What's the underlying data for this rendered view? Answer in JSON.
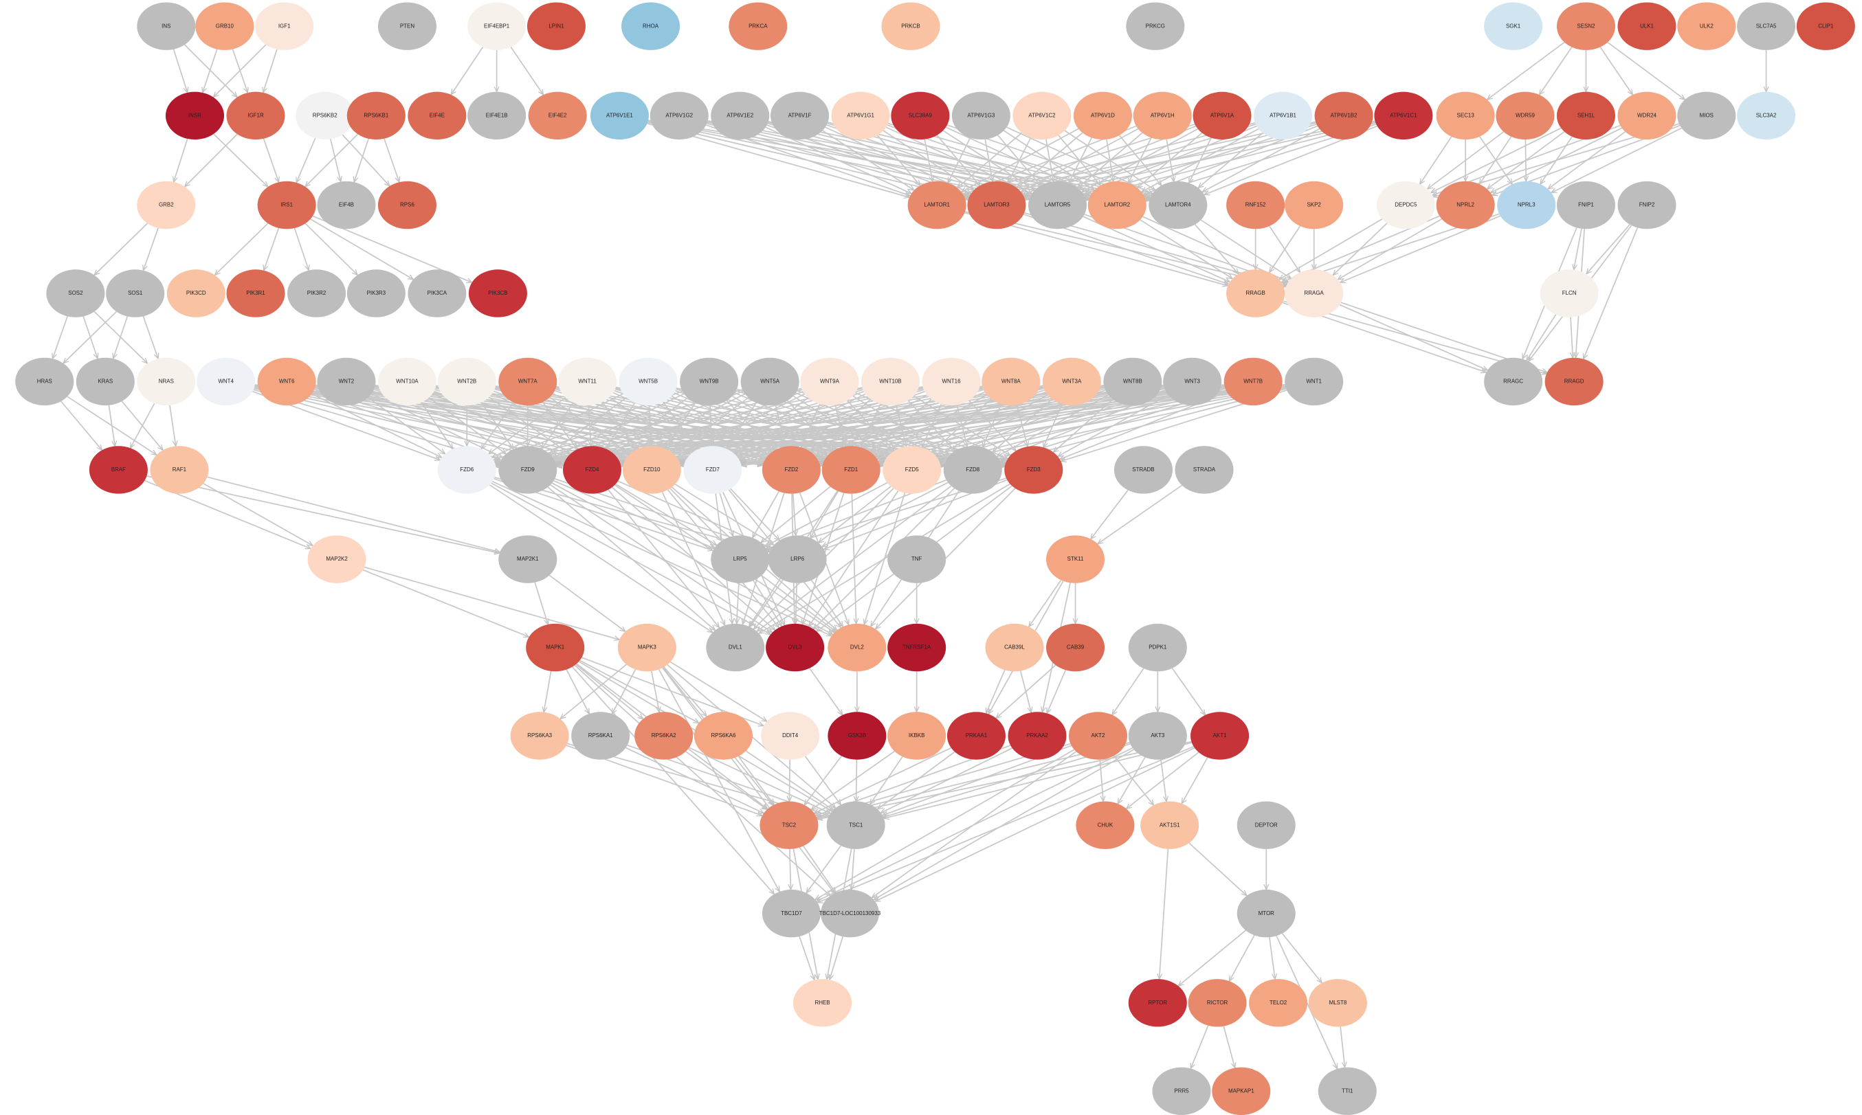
{
  "nodes": [
    {
      "label": "INS",
      "color": "#bdbdbd"
    },
    {
      "label": "GRB10",
      "color": "#f4a582"
    },
    {
      "label": "IGF1",
      "color": "#fbe6dc"
    },
    {
      "label": "PTEN",
      "color": "#bdbdbd"
    },
    {
      "label": "EIF4EBP1",
      "color": "#f7f1ec"
    },
    {
      "label": "LPIN1",
      "color": "#d35444"
    },
    {
      "label": "RHOA",
      "color": "#92c5de"
    },
    {
      "label": "PRKCA",
      "color": "#e8896b"
    },
    {
      "label": "PRKCB",
      "color": "#f8c2a3"
    },
    {
      "label": "PRKCG",
      "color": "#bdbdbd"
    },
    {
      "label": "SGK1",
      "color": "#d1e5f0"
    },
    {
      "label": "SESN2",
      "color": "#e8896b"
    },
    {
      "label": "ULK1",
      "color": "#d35444"
    },
    {
      "label": "ULK2",
      "color": "#f4a582"
    },
    {
      "label": "SLC7A5",
      "color": "#bdbdbd"
    },
    {
      "label": "CLIP1",
      "color": "#d35444"
    },
    {
      "label": "INSR",
      "color": "#b2182b"
    },
    {
      "label": "IGF1R",
      "color": "#dc6b55"
    },
    {
      "label": "RPS6KB2",
      "color": "#f2f2f2"
    },
    {
      "label": "RPS6KB1",
      "color": "#dc6b55"
    },
    {
      "label": "EIF4E",
      "color": "#dc6b55"
    },
    {
      "label": "EIF4E1B",
      "color": "#bdbdbd"
    },
    {
      "label": "EIF4E2",
      "color": "#e8896b"
    },
    {
      "label": "ATP6V1E1",
      "color": "#92c5de"
    },
    {
      "label": "ATP6V1G2",
      "color": "#bdbdbd"
    },
    {
      "label": "ATP6V1E2",
      "color": "#bdbdbd"
    },
    {
      "label": "ATP6V1F",
      "color": "#bdbdbd"
    },
    {
      "label": "ATP6V1G1",
      "color": "#fdd7c2"
    },
    {
      "label": "SLC38A9",
      "color": "#c6343a"
    },
    {
      "label": "ATP6V1G3",
      "color": "#bdbdbd"
    },
    {
      "label": "ATP6V1C2",
      "color": "#fdd7c2"
    },
    {
      "label": "ATP6V1D",
      "color": "#f4a582"
    },
    {
      "label": "ATP6V1H",
      "color": "#f4a582"
    },
    {
      "label": "ATP6V1A",
      "color": "#d35444"
    },
    {
      "label": "ATP6V1B1",
      "color": "#dde9f3"
    },
    {
      "label": "ATP6V1B2",
      "color": "#dc6b55"
    },
    {
      "label": "ATP6V1C1",
      "color": "#c6343a"
    },
    {
      "label": "SEC13",
      "color": "#f4a582"
    },
    {
      "label": "WDR59",
      "color": "#e8896b"
    },
    {
      "label": "SEH1L",
      "color": "#d35444"
    },
    {
      "label": "WDR24",
      "color": "#f4a582"
    },
    {
      "label": "MIOS",
      "color": "#bdbdbd"
    },
    {
      "label": "SLC3A2",
      "color": "#d1e5f0"
    },
    {
      "label": "GRB2",
      "color": "#fdd7c2"
    },
    {
      "label": "IRS1",
      "color": "#dc6b55"
    },
    {
      "label": "EIF4B",
      "color": "#bdbdbd"
    },
    {
      "label": "RPS6",
      "color": "#dc6b55"
    },
    {
      "label": "LAMTOR1",
      "color": "#e8896b"
    },
    {
      "label": "LAMTOR3",
      "color": "#dc6b55"
    },
    {
      "label": "LAMTOR5",
      "color": "#bdbdbd"
    },
    {
      "label": "LAMTOR2",
      "color": "#f4a582"
    },
    {
      "label": "LAMTOR4",
      "color": "#bdbdbd"
    },
    {
      "label": "RNF152",
      "color": "#e8896b"
    },
    {
      "label": "SKP2",
      "color": "#f4a582"
    },
    {
      "label": "DEPDC5",
      "color": "#f7f1ec"
    },
    {
      "label": "NPRL2",
      "color": "#e8896b"
    },
    {
      "label": "NPRL3",
      "color": "#b5d6ea"
    },
    {
      "label": "FNIP1",
      "color": "#bdbdbd"
    },
    {
      "label": "FNIP2",
      "color": "#bdbdbd"
    },
    {
      "label": "SOS2",
      "color": "#bdbdbd"
    },
    {
      "label": "SOS1",
      "color": "#bdbdbd"
    },
    {
      "label": "PIK3CD",
      "color": "#f8c2a3"
    },
    {
      "label": "PIK3R1",
      "color": "#dc6b55"
    },
    {
      "label": "PIK3R2",
      "color": "#bdbdbd"
    },
    {
      "label": "PIK3R3",
      "color": "#bdbdbd"
    },
    {
      "label": "PIK3CA",
      "color": "#bdbdbd"
    },
    {
      "label": "PIK3CB",
      "color": "#c6343a"
    },
    {
      "label": "RRAGB",
      "color": "#f8c2a3"
    },
    {
      "label": "RRAGA",
      "color": "#fbe6dc"
    },
    {
      "label": "FLCN",
      "color": "#f7f1ec"
    },
    {
      "label": "HRAS",
      "color": "#bdbdbd"
    },
    {
      "label": "KRAS",
      "color": "#bdbdbd"
    },
    {
      "label": "NRAS",
      "color": "#f7f1ec"
    },
    {
      "label": "WNT4",
      "color": "#eef2f6"
    },
    {
      "label": "WNT6",
      "color": "#f4a582"
    },
    {
      "label": "WNT2",
      "color": "#bdbdbd"
    },
    {
      "label": "WNT10A",
      "color": "#f7f1ec"
    },
    {
      "label": "WNT2B",
      "color": "#f7f1ec"
    },
    {
      "label": "WNT7A",
      "color": "#e8896b"
    },
    {
      "label": "WNT11",
      "color": "#f7f1ec"
    },
    {
      "label": "WNT5B",
      "color": "#eef2f6"
    },
    {
      "label": "WNT9B",
      "color": "#bdbdbd"
    },
    {
      "label": "WNT5A",
      "color": "#bdbdbd"
    },
    {
      "label": "WNT9A",
      "color": "#fbe6dc"
    },
    {
      "label": "WNT10B",
      "color": "#fbe6dc"
    },
    {
      "label": "WNT16",
      "color": "#fbe6dc"
    },
    {
      "label": "WNT8A",
      "color": "#f8c2a3"
    },
    {
      "label": "WNT3A",
      "color": "#f8c2a3"
    },
    {
      "label": "WNT8B",
      "color": "#bdbdbd"
    },
    {
      "label": "WNT3",
      "color": "#bdbdbd"
    },
    {
      "label": "WNT7B",
      "color": "#e8896b"
    },
    {
      "label": "WNT1",
      "color": "#bdbdbd"
    },
    {
      "label": "RRAGC",
      "color": "#bdbdbd"
    },
    {
      "label": "RRAGD",
      "color": "#dc6b55"
    },
    {
      "label": "BRAF",
      "color": "#c6343a"
    },
    {
      "label": "RAF1",
      "color": "#f8c2a3"
    },
    {
      "label": "FZD6",
      "color": "#eef2f6"
    },
    {
      "label": "FZD9",
      "color": "#bdbdbd"
    },
    {
      "label": "FZD4",
      "color": "#c6343a"
    },
    {
      "label": "FZD10",
      "color": "#f8c2a3"
    },
    {
      "label": "FZD7",
      "color": "#eef2f6"
    },
    {
      "label": "FZD2",
      "color": "#e8896b"
    },
    {
      "label": "FZD1",
      "color": "#e8896b"
    },
    {
      "label": "FZD5",
      "color": "#fdd7c2"
    },
    {
      "label": "FZD8",
      "color": "#bdbdbd"
    },
    {
      "label": "FZD3",
      "color": "#d35444"
    },
    {
      "label": "STRADB",
      "color": "#bdbdbd"
    },
    {
      "label": "STRADA",
      "color": "#bdbdbd"
    },
    {
      "label": "MAP2K2",
      "color": "#fdd7c2"
    },
    {
      "label": "MAP2K1",
      "color": "#bdbdbd"
    },
    {
      "label": "LRP5",
      "color": "#bdbdbd"
    },
    {
      "label": "LRP6",
      "color": "#bdbdbd"
    },
    {
      "label": "TNF",
      "color": "#bdbdbd"
    },
    {
      "label": "STK11",
      "color": "#f4a582"
    },
    {
      "label": "MAPK1",
      "color": "#d35444"
    },
    {
      "label": "MAPK3",
      "color": "#f8c2a3"
    },
    {
      "label": "DVL1",
      "color": "#bdbdbd"
    },
    {
      "label": "DVL3",
      "color": "#b2182b"
    },
    {
      "label": "DVL2",
      "color": "#f4a582"
    },
    {
      "label": "TNFRSF1A",
      "color": "#b2182b"
    },
    {
      "label": "CAB39L",
      "color": "#f8c2a3"
    },
    {
      "label": "CAB39",
      "color": "#dc6b55"
    },
    {
      "label": "PDPK1",
      "color": "#bdbdbd"
    },
    {
      "label": "RPS6KA3",
      "color": "#f8c2a3"
    },
    {
      "label": "RPS6KA1",
      "color": "#bdbdbd"
    },
    {
      "label": "RPS6KA2",
      "color": "#e8896b"
    },
    {
      "label": "RPS6KA6",
      "color": "#f4a582"
    },
    {
      "label": "DDIT4",
      "color": "#fbe6dc"
    },
    {
      "label": "GSK3B",
      "color": "#b2182b"
    },
    {
      "label": "IKBKB",
      "color": "#f4a582"
    },
    {
      "label": "PRKAA1",
      "color": "#c6343a"
    },
    {
      "label": "PRKAA2",
      "color": "#c6343a"
    },
    {
      "label": "AKT2",
      "color": "#e8896b"
    },
    {
      "label": "AKT3",
      "color": "#bdbdbd"
    },
    {
      "label": "AKT1",
      "color": "#c6343a"
    },
    {
      "label": "TSC2",
      "color": "#e8896b"
    },
    {
      "label": "TSC1",
      "color": "#bdbdbd"
    },
    {
      "label": "CHUK",
      "color": "#e8896b"
    },
    {
      "label": "AKT1S1",
      "color": "#f8c2a3"
    },
    {
      "label": "DEPTOR",
      "color": "#bdbdbd"
    },
    {
      "label": "TBC1D7",
      "color": "#bdbdbd"
    },
    {
      "label": "TBC1D7-LOC100130933",
      "color": "#bdbdbd"
    },
    {
      "label": "MTOR",
      "color": "#bdbdbd"
    },
    {
      "label": "RHEB",
      "color": "#fdd7c2"
    },
    {
      "label": "RPTOR",
      "color": "#c6343a"
    },
    {
      "label": "RICTOR",
      "color": "#e8896b"
    },
    {
      "label": "TELO2",
      "color": "#f4a582"
    },
    {
      "label": "MLST8",
      "color": "#f8c2a3"
    },
    {
      "label": "PRR5",
      "color": "#bdbdbd"
    },
    {
      "label": "MAPKAP1",
      "color": "#e8896b"
    },
    {
      "label": "TTI1",
      "color": "#bdbdbd"
    }
  ]
}
